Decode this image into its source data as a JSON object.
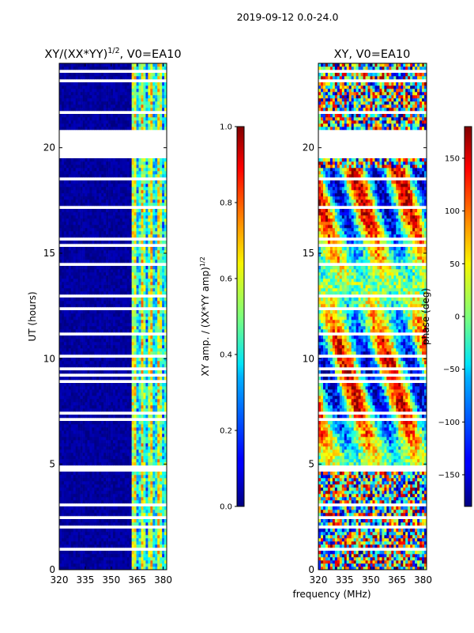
{
  "suptitle": "2019-09-12 0.0-24.0",
  "xlabel": "frequency (MHz)",
  "chart_data": [
    {
      "type": "heatmap",
      "title": "XY/(XX*YY)$^{1/2}$, V0=EA10",
      "title_main": "XY/(XX*YY)",
      "title_sup": "1/2",
      "title_rest": ", V0=EA10",
      "xlabel": "frequency (MHz)",
      "ylabel": "UT (hours)",
      "xlim": [
        320,
        382
      ],
      "ylim": [
        0,
        24
      ],
      "xticks": [
        320,
        335,
        350,
        365,
        380
      ],
      "yticks": [
        0,
        5,
        10,
        15,
        20
      ],
      "colormap": "jet",
      "colorbar": {
        "label": "XY amp. / (XX*YY amp)$^{1/2}$",
        "label_main": "XY amp. / (XX*YY amp)",
        "label_sup": "1/2",
        "range": [
          0.0,
          1.0
        ],
        "ticks": [
          "0.0",
          "0.2",
          "0.4",
          "0.6",
          "0.8",
          "1.0"
        ]
      },
      "notes": "Mostly low amplitude (~0) below 362 MHz; vertical bands of elevated amplitude between ~362 and 380 MHz; data gap ~19.5-20.8 h; many horizontal flagged rows"
    },
    {
      "type": "heatmap",
      "title": "XY, V0=EA10",
      "xlabel": "frequency (MHz)",
      "ylabel": "",
      "xlim": [
        320,
        382
      ],
      "ylim": [
        0,
        24
      ],
      "xticks": [
        320,
        335,
        350,
        365,
        380
      ],
      "yticks": [
        0,
        5,
        10,
        15,
        20
      ],
      "colormap": "jet",
      "colorbar": {
        "label": "phase (deg)",
        "range": [
          -180,
          180
        ],
        "ticks": [
          "-150",
          "-100",
          "-50",
          "0",
          "50",
          "100",
          "150"
        ]
      },
      "notes": "Phase noise across full band, with coherent structure between ~5-19 h; data gap ~19.5-20.8 h"
    }
  ]
}
